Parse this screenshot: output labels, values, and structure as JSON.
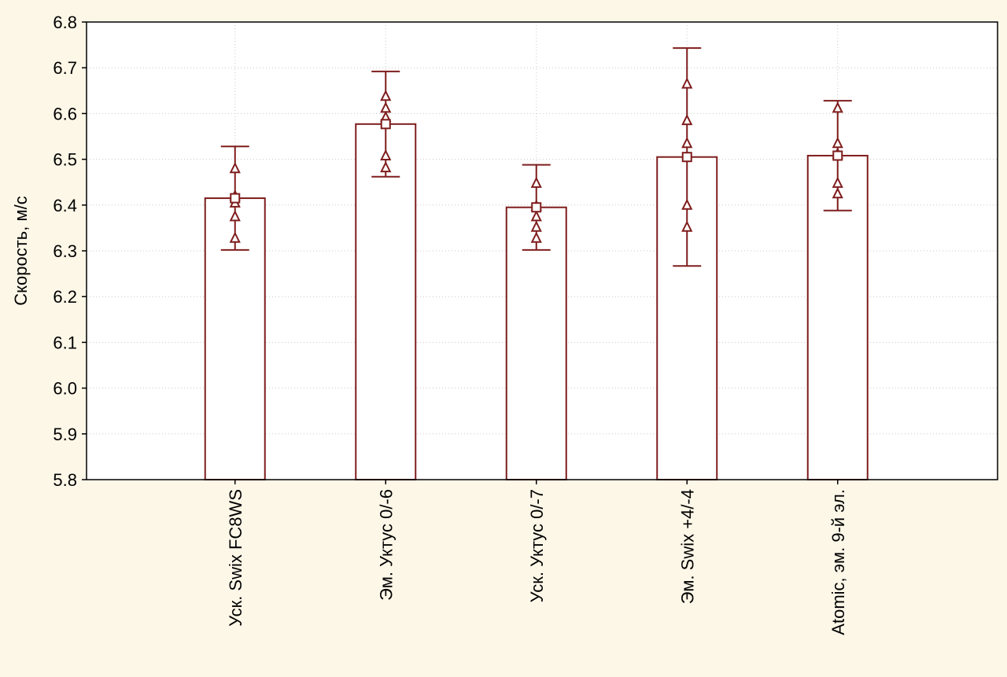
{
  "chart_data": {
    "type": "bar",
    "title": "",
    "xlabel": "",
    "ylabel": "Скорость, м/с",
    "ylim": [
      5.8,
      6.8
    ],
    "yticks": [
      "5.8",
      "5.9",
      "6.0",
      "6.1",
      "6.2",
      "6.3",
      "6.4",
      "6.5",
      "6.6",
      "6.7",
      "6.8"
    ],
    "grid": true,
    "categories": [
      "Уск. Swix FC8WS",
      "Эм. Уктус 0/-6",
      "Уск. Уктус 0/-7",
      "Эм. Swix +4/-4",
      "Atomic, эм. 9-й эл."
    ],
    "values": [
      6.415,
      6.577,
      6.395,
      6.505,
      6.508
    ],
    "error_low": [
      6.302,
      6.462,
      6.302,
      6.267,
      6.388
    ],
    "error_high": [
      6.528,
      6.692,
      6.488,
      6.743,
      6.628
    ],
    "points": [
      [
        6.48,
        6.42,
        6.405,
        6.375,
        6.328
      ],
      [
        6.638,
        6.612,
        6.592,
        6.508,
        6.482
      ],
      [
        6.448,
        6.398,
        6.375,
        6.352,
        6.328
      ],
      [
        6.665,
        6.585,
        6.535,
        6.4,
        6.352
      ],
      [
        6.612,
        6.535,
        6.512,
        6.448,
        6.425
      ]
    ],
    "colors": {
      "bars": "#7f1d1d",
      "background": "#fdf7e8",
      "plot_bg": "#ffffff"
    }
  }
}
